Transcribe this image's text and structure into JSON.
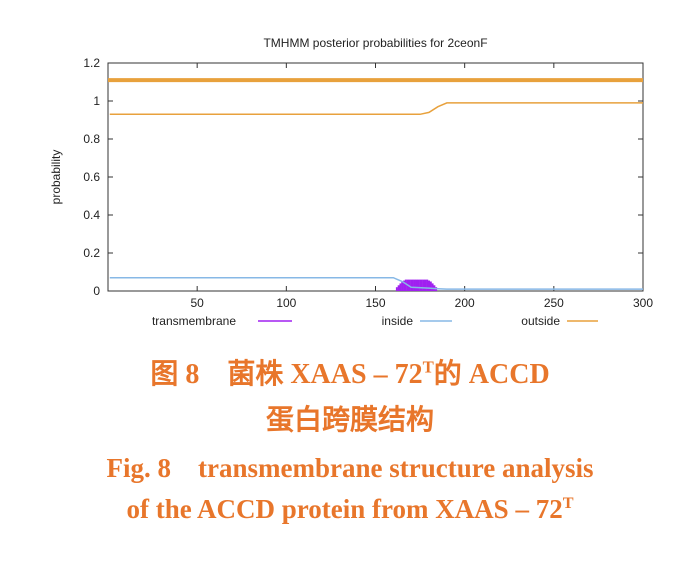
{
  "chart_data": {
    "type": "line",
    "title": "TMHMM posterior probabilities for 2ceonF",
    "xlabel": "",
    "ylabel": "probability",
    "xlim": [
      0,
      300
    ],
    "ylim": [
      0,
      1.2
    ],
    "x_ticks": [
      "50",
      "100",
      "150",
      "200",
      "250",
      "300"
    ],
    "y_ticks": [
      "0",
      "0.2",
      "0.4",
      "0.6",
      "0.8",
      "1",
      "1.2"
    ],
    "legend_position": "bottom",
    "series": [
      {
        "name": "transmembrane",
        "color": "#a020f0",
        "style": "impulse",
        "x": [
          162,
          163,
          164,
          165,
          166,
          167,
          168,
          169,
          170,
          171,
          172,
          173,
          174,
          175,
          176,
          177,
          178,
          179,
          180,
          181,
          182,
          183,
          184
        ],
        "values": [
          0.02,
          0.03,
          0.04,
          0.05,
          0.055,
          0.06,
          0.06,
          0.06,
          0.06,
          0.06,
          0.06,
          0.06,
          0.06,
          0.06,
          0.06,
          0.06,
          0.06,
          0.06,
          0.055,
          0.05,
          0.04,
          0.03,
          0.02
        ]
      },
      {
        "name": "inside",
        "color": "#87b8e6",
        "style": "line",
        "x": [
          1,
          160,
          165,
          170,
          180,
          185,
          190,
          300
        ],
        "values": [
          0.07,
          0.07,
          0.05,
          0.02,
          0.015,
          0.012,
          0.01,
          0.01
        ]
      },
      {
        "name": "outside",
        "color": "#e8a13c",
        "style": "line",
        "x": [
          1,
          160,
          175,
          180,
          185,
          190,
          300
        ],
        "values": [
          0.93,
          0.93,
          0.93,
          0.94,
          0.97,
          0.99,
          0.99
        ]
      }
    ],
    "bar_line": {
      "color": "#e8a13c",
      "value": 1.11
    }
  },
  "caption": {
    "cn_line1_pre": "图 8　菌株 XAAS – 72",
    "cn_line1_sup": "T",
    "cn_line1_post": "的 ACCD",
    "cn_line2": "蛋白跨膜结构",
    "en_line1": "Fig. 8　transmembrane structure analysis",
    "en_line2_pre": "of the ACCD protein from XAAS – 72",
    "en_line2_sup": "T"
  },
  "colors": {
    "caption": "#e8762b"
  }
}
